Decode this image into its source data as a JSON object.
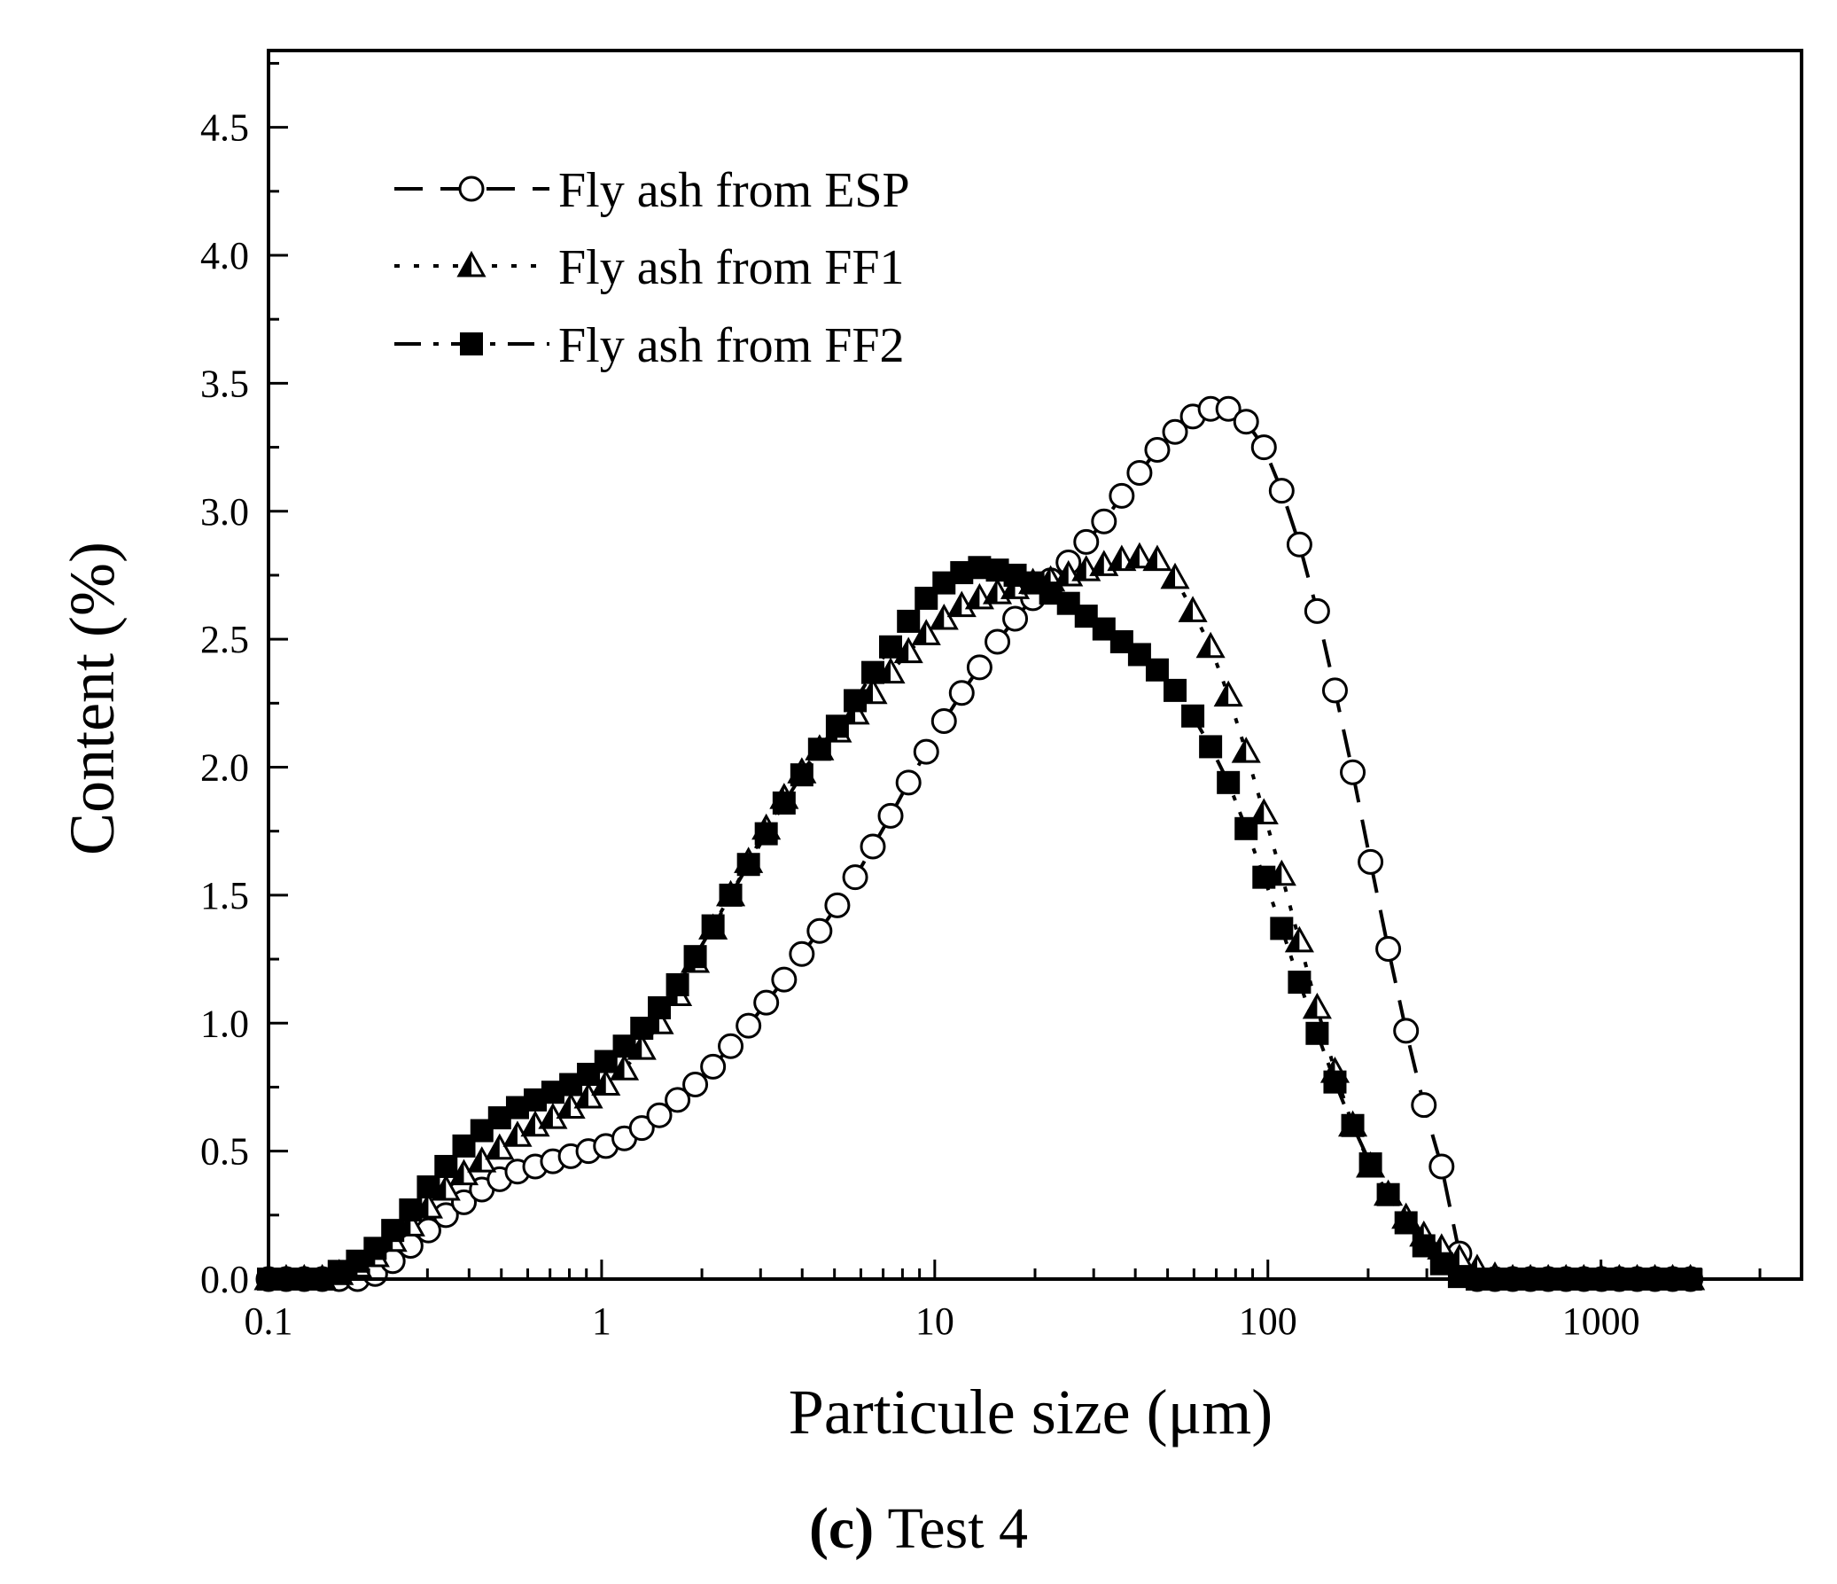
{
  "chart_data": {
    "type": "scatter",
    "xscale": "log",
    "xlim": [
      0.1,
      4000
    ],
    "ylim": [
      0,
      4.8
    ],
    "xlabel": "Particule size (μm)",
    "ylabel": "Content (%)",
    "xticks": [
      {
        "value": 0.1,
        "label": "0.1"
      },
      {
        "value": 1,
        "label": "1"
      },
      {
        "value": 10,
        "label": "10"
      },
      {
        "value": 100,
        "label": "100"
      },
      {
        "value": 1000,
        "label": "1000"
      }
    ],
    "yticks": [
      {
        "value": 0.0,
        "label": "0.0"
      },
      {
        "value": 0.5,
        "label": "0.5"
      },
      {
        "value": 1.0,
        "label": "1.0"
      },
      {
        "value": 1.5,
        "label": "1.5"
      },
      {
        "value": 2.0,
        "label": "2.0"
      },
      {
        "value": 2.5,
        "label": "2.5"
      },
      {
        "value": 3.0,
        "label": "3.0"
      },
      {
        "value": 3.5,
        "label": "3.5"
      },
      {
        "value": 4.0,
        "label": "4.0"
      },
      {
        "value": 4.5,
        "label": "4.5"
      }
    ],
    "legend_position": "top-left",
    "series": [
      {
        "name": "Fly ash from ESP",
        "marker": "circle-open",
        "line": "dash",
        "x": [
          0.1,
          0.113,
          0.128,
          0.145,
          0.163,
          0.185,
          0.209,
          0.236,
          0.267,
          0.302,
          0.341,
          0.386,
          0.437,
          0.494,
          0.559,
          0.632,
          0.714,
          0.808,
          0.913,
          1.03,
          1.17,
          1.32,
          1.49,
          1.69,
          1.91,
          2.16,
          2.44,
          2.76,
          3.12,
          3.53,
          3.99,
          4.51,
          5.1,
          5.77,
          6.52,
          7.37,
          8.34,
          9.43,
          10.66,
          12.05,
          13.63,
          15.42,
          17.43,
          19.71,
          22.28,
          25.2,
          28.49,
          32.21,
          36.42,
          41.18,
          46.56,
          52.65,
          59.53,
          67.31,
          76.1,
          86.05,
          97.3,
          110,
          124.4,
          140.6,
          159,
          179.8,
          203.3,
          229.8,
          259.9,
          293.9,
          332.3,
          375.8,
          424.9,
          480.4,
          543.2,
          614.2,
          694.5,
          785.3,
          888,
          1004,
          1135,
          1284,
          1452,
          1641,
          1856
        ],
        "y": [
          0,
          0,
          0,
          0,
          0,
          0,
          0.02,
          0.07,
          0.13,
          0.19,
          0.25,
          0.3,
          0.35,
          0.39,
          0.42,
          0.44,
          0.46,
          0.48,
          0.5,
          0.52,
          0.55,
          0.59,
          0.64,
          0.7,
          0.76,
          0.83,
          0.91,
          0.99,
          1.08,
          1.17,
          1.27,
          1.36,
          1.46,
          1.57,
          1.69,
          1.81,
          1.94,
          2.06,
          2.18,
          2.29,
          2.39,
          2.49,
          2.58,
          2.66,
          2.73,
          2.8,
          2.88,
          2.96,
          3.06,
          3.15,
          3.24,
          3.31,
          3.37,
          3.4,
          3.4,
          3.35,
          3.25,
          3.08,
          2.87,
          2.61,
          2.3,
          1.98,
          1.63,
          1.29,
          0.97,
          0.68,
          0.44,
          0.1,
          0,
          0,
          0,
          0,
          0,
          0,
          0,
          0,
          0,
          0,
          0,
          0,
          0
        ]
      },
      {
        "name": "Fly ash from FF1",
        "marker": "triangle-half",
        "line": "dot",
        "x": [
          0.1,
          0.113,
          0.128,
          0.145,
          0.163,
          0.185,
          0.209,
          0.236,
          0.267,
          0.302,
          0.341,
          0.386,
          0.437,
          0.494,
          0.559,
          0.632,
          0.714,
          0.808,
          0.913,
          1.03,
          1.17,
          1.32,
          1.49,
          1.69,
          1.91,
          2.16,
          2.44,
          2.76,
          3.12,
          3.53,
          3.99,
          4.51,
          5.1,
          5.77,
          6.52,
          7.37,
          8.34,
          9.43,
          10.66,
          12.05,
          13.63,
          15.42,
          17.43,
          19.71,
          22.28,
          25.2,
          28.49,
          32.21,
          36.42,
          41.18,
          46.56,
          52.65,
          59.53,
          67.31,
          76.1,
          86.05,
          97.3,
          110,
          124.4,
          140.6,
          159,
          179.8,
          203.3,
          229.8,
          259.9,
          293.9,
          332.3,
          375.8,
          424.9,
          480.4,
          543.2,
          614.2,
          694.5,
          785.3,
          888,
          1004,
          1135,
          1284,
          1452,
          1641,
          1856
        ],
        "y": [
          0,
          0,
          0,
          0,
          0.02,
          0.05,
          0.09,
          0.15,
          0.21,
          0.28,
          0.35,
          0.41,
          0.46,
          0.51,
          0.56,
          0.6,
          0.63,
          0.67,
          0.71,
          0.76,
          0.82,
          0.9,
          1.0,
          1.11,
          1.24,
          1.37,
          1.5,
          1.63,
          1.76,
          1.88,
          1.98,
          2.07,
          2.14,
          2.21,
          2.29,
          2.37,
          2.45,
          2.52,
          2.58,
          2.63,
          2.66,
          2.68,
          2.7,
          2.72,
          2.73,
          2.75,
          2.77,
          2.79,
          2.81,
          2.82,
          2.81,
          2.74,
          2.61,
          2.47,
          2.28,
          2.06,
          1.82,
          1.58,
          1.32,
          1.06,
          0.81,
          0.6,
          0.44,
          0.33,
          0.24,
          0.17,
          0.12,
          0.08,
          0.04,
          0.01,
          0,
          0,
          0,
          0,
          0,
          0,
          0,
          0,
          0,
          0,
          0
        ]
      },
      {
        "name": "Fly ash from FF2",
        "marker": "square-filled",
        "line": "dashdot",
        "x": [
          0.1,
          0.113,
          0.128,
          0.145,
          0.163,
          0.185,
          0.209,
          0.236,
          0.267,
          0.302,
          0.341,
          0.386,
          0.437,
          0.494,
          0.559,
          0.632,
          0.714,
          0.808,
          0.913,
          1.03,
          1.17,
          1.32,
          1.49,
          1.69,
          1.91,
          2.16,
          2.44,
          2.76,
          3.12,
          3.53,
          3.99,
          4.51,
          5.1,
          5.77,
          6.52,
          7.37,
          8.34,
          9.43,
          10.66,
          12.05,
          13.63,
          15.42,
          17.43,
          19.71,
          22.28,
          25.2,
          28.49,
          32.21,
          36.42,
          41.18,
          46.56,
          52.65,
          59.53,
          67.31,
          76.1,
          86.05,
          97.3,
          110,
          124.4,
          140.6,
          159,
          179.8,
          203.3,
          229.8,
          259.9,
          293.9,
          332.3,
          375.8,
          424.9,
          480.4,
          543.2,
          614.2,
          694.5,
          785.3,
          888,
          1004,
          1135,
          1284,
          1452,
          1641,
          1856
        ],
        "y": [
          0,
          0,
          0,
          0,
          0.03,
          0.07,
          0.12,
          0.19,
          0.27,
          0.36,
          0.44,
          0.52,
          0.58,
          0.63,
          0.67,
          0.7,
          0.73,
          0.76,
          0.8,
          0.85,
          0.91,
          0.98,
          1.06,
          1.15,
          1.26,
          1.38,
          1.5,
          1.62,
          1.74,
          1.86,
          1.97,
          2.07,
          2.16,
          2.26,
          2.37,
          2.47,
          2.57,
          2.66,
          2.72,
          2.76,
          2.78,
          2.77,
          2.75,
          2.72,
          2.68,
          2.64,
          2.59,
          2.54,
          2.49,
          2.44,
          2.38,
          2.3,
          2.2,
          2.08,
          1.94,
          1.76,
          1.57,
          1.37,
          1.16,
          0.96,
          0.77,
          0.6,
          0.45,
          0.33,
          0.22,
          0.13,
          0.06,
          0.01,
          0,
          0,
          0,
          0,
          0,
          0,
          0,
          0,
          0,
          0,
          0,
          0,
          0
        ]
      }
    ]
  },
  "caption": {
    "label": "(c)",
    "text": "Test 4"
  }
}
